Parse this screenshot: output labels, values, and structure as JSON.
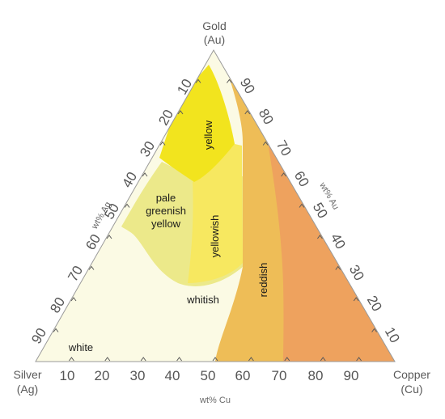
{
  "vertices": {
    "top": {
      "name": "Gold",
      "symbol": "(Au)"
    },
    "left": {
      "name": "Silver",
      "symbol": "(Ag)"
    },
    "right": {
      "name": "Copper",
      "symbol": "(Cu)"
    }
  },
  "axes": {
    "ag": {
      "title": "wt% Ag",
      "ticks": [
        "10",
        "20",
        "30",
        "40",
        "50",
        "60",
        "70",
        "80",
        "90"
      ]
    },
    "au": {
      "title": "wt% Au",
      "ticks": [
        "90",
        "80",
        "70",
        "60",
        "50",
        "40",
        "30",
        "20",
        "10"
      ]
    },
    "cu": {
      "title": "wt% Cu",
      "ticks": [
        "10",
        "20",
        "30",
        "40",
        "50",
        "60",
        "70",
        "80",
        "90"
      ]
    }
  },
  "regions": {
    "yellow": "yellow",
    "pale_line1": "pale",
    "pale_line2": "greenish",
    "pale_line3": "yellow",
    "yellowish": "yellowish",
    "whitish": "whitish",
    "reddish": "reddish",
    "white": "white"
  },
  "colors": {
    "white": "#fbfae4",
    "pale_greenish_yellow": "#ece98a",
    "yellow": "#f2e41e",
    "yellowish": "#f7e860",
    "reddish_light": "#eebd57",
    "reddish_dark": "#eea25e",
    "outline": "#9a9a9a"
  }
}
